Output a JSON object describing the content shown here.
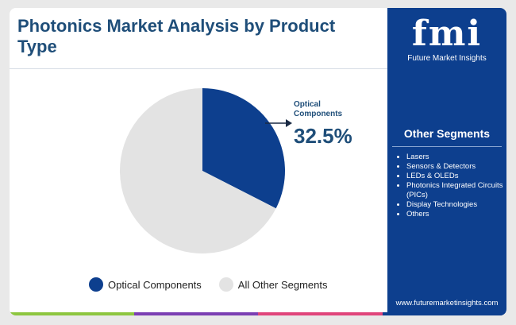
{
  "header": {
    "title": "Photonics Market Analysis by Product Type"
  },
  "chart_data": {
    "type": "pie",
    "slices": [
      {
        "label": "Optical Components",
        "value": 32.5,
        "color": "#0d3f8e"
      },
      {
        "label": "All Other Segments",
        "value": 67.5,
        "color": "#e3e3e3"
      }
    ],
    "callout": {
      "label": "Optical Components",
      "value_text": "32.5%"
    },
    "legend_position": "bottom"
  },
  "legend": {
    "items": [
      {
        "label": "Optical Components",
        "color": "#0d3f8e"
      },
      {
        "label": "All Other Segments",
        "color": "#e3e3e3"
      }
    ]
  },
  "sidebar": {
    "logo_text": "fmi",
    "logo_subtitle": "Future Market Insights",
    "segments_title": "Other Segments",
    "segments": [
      "Lasers",
      "Sensors & Detectors",
      "LEDs & OLEDs",
      "Photonics Integrated Circuits (PICs)",
      "Display Technologies",
      "Others"
    ],
    "website": "www.futuremarketinsights.com"
  },
  "colors": {
    "brand": "#0d3f8e",
    "title": "#1f4e79",
    "other": "#e3e3e3"
  },
  "bottom_bar_colors": [
    "#8dc63f",
    "#7b3fb3",
    "#e0457b",
    "#0d3f8e"
  ]
}
